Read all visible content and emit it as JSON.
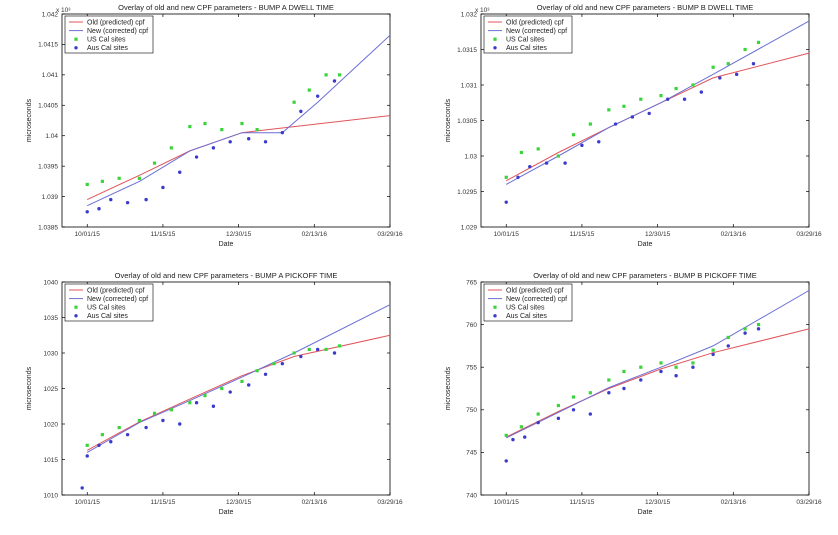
{
  "colors": {
    "old": "#e0555a",
    "new": "#6b6fd6",
    "us": "#3ad43a",
    "aus": "#3a3acc",
    "axis": "#000000"
  },
  "chart_data": [
    {
      "type": "line",
      "title": "Overlay of old and new CPF parameters - BUMP A DWELL TIME",
      "xlabel": "Date",
      "ylabel": "microseconds",
      "y_exponent": "x 10³",
      "x_ticks": [
        "10/01/15",
        "11/15/15",
        "12/30/15",
        "02/13/16",
        "03/29/16"
      ],
      "xlim": [
        "2015-09-16",
        "2016-03-29"
      ],
      "y_ticks": [
        "1.0385",
        "1.039",
        "1.0395",
        "1.04",
        "1.0405",
        "1.041",
        "1.0415",
        "1.042"
      ],
      "ylim": [
        1.0385,
        1.042
      ],
      "legend": [
        "Old (predicted) cpf",
        "New (corrected) cpf",
        "US Cal sites",
        "Aus Cal sites"
      ],
      "series": [
        {
          "name": "Old (predicted) cpf",
          "x": [
            "2015-10-01",
            "2015-11-01",
            "2015-12-01",
            "2016-01-01",
            "2016-02-01",
            "2016-03-29"
          ],
          "y": [
            1.03895,
            1.03935,
            1.03975,
            1.04005,
            1.04015,
            1.04033
          ]
        },
        {
          "name": "New (corrected) cpf",
          "x": [
            "2015-10-01",
            "2015-11-01",
            "2015-12-01",
            "2016-01-01",
            "2016-01-25",
            "2016-02-15",
            "2016-03-29"
          ],
          "y": [
            1.03885,
            1.03925,
            1.03975,
            1.04005,
            1.04005,
            1.04055,
            1.04165
          ]
        },
        {
          "name": "US Cal sites",
          "x": [
            "2015-10-01",
            "2015-10-10",
            "2015-10-20",
            "2015-11-01",
            "2015-11-10",
            "2015-11-20",
            "2015-12-01",
            "2015-12-10",
            "2015-12-20",
            "2016-01-01",
            "2016-01-10",
            "2016-02-01",
            "2016-02-10",
            "2016-02-20",
            "2016-02-28"
          ],
          "y": [
            1.0392,
            1.03925,
            1.0393,
            1.0393,
            1.03955,
            1.0398,
            1.04015,
            1.0402,
            1.0401,
            1.0402,
            1.0401,
            1.04055,
            1.04075,
            1.041,
            1.041
          ]
        },
        {
          "name": "Aus Cal sites",
          "x": [
            "2015-10-01",
            "2015-10-08",
            "2015-10-15",
            "2015-10-25",
            "2015-11-05",
            "2015-11-15",
            "2015-11-25",
            "2015-12-05",
            "2015-12-15",
            "2015-12-25",
            "2016-01-05",
            "2016-01-15",
            "2016-01-25",
            "2016-02-05",
            "2016-02-15",
            "2016-02-25"
          ],
          "y": [
            1.03875,
            1.0388,
            1.03895,
            1.0389,
            1.03895,
            1.03915,
            1.0394,
            1.03965,
            1.0398,
            1.0399,
            1.03995,
            1.0399,
            1.04005,
            1.0404,
            1.04065,
            1.0409
          ]
        }
      ]
    },
    {
      "type": "line",
      "title": "Overlay of old and new CPF parameters - BUMP B DWELL TIME",
      "xlabel": "Date",
      "ylabel": "microseconds",
      "y_exponent": "x 10³",
      "x_ticks": [
        "10/01/15",
        "11/15/15",
        "12/30/15",
        "02/13/16",
        "03/29/16"
      ],
      "xlim": [
        "2015-09-16",
        "2016-03-29"
      ],
      "y_ticks": [
        "1.029",
        "1.0295",
        "1.03",
        "1.0305",
        "1.031",
        "1.0315",
        "1.032"
      ],
      "ylim": [
        1.029,
        1.032
      ],
      "legend": [
        "Old (predicted) cpf",
        "New (corrected) cpf",
        "US Cal sites",
        "Aus Cal sites"
      ],
      "series": [
        {
          "name": "Old (predicted) cpf",
          "x": [
            "2015-10-01",
            "2015-11-01",
            "2015-12-01",
            "2016-01-01",
            "2016-02-01",
            "2016-03-29"
          ],
          "y": [
            1.02965,
            1.03005,
            1.0304,
            1.03075,
            1.0311,
            1.03145
          ]
        },
        {
          "name": "New (corrected) cpf",
          "x": [
            "2015-10-01",
            "2015-11-01",
            "2015-12-01",
            "2016-01-01",
            "2016-02-01",
            "2016-03-29"
          ],
          "y": [
            1.0296,
            1.03,
            1.0304,
            1.03075,
            1.03115,
            1.0319
          ]
        },
        {
          "name": "US Cal sites",
          "x": [
            "2015-10-01",
            "2015-10-10",
            "2015-10-20",
            "2015-11-01",
            "2015-11-10",
            "2015-11-20",
            "2015-12-01",
            "2015-12-10",
            "2015-12-20",
            "2016-01-01",
            "2016-01-10",
            "2016-01-20",
            "2016-02-01",
            "2016-02-10",
            "2016-02-20",
            "2016-02-28"
          ],
          "y": [
            1.0297,
            1.03005,
            1.0301,
            1.03,
            1.0303,
            1.03045,
            1.03065,
            1.0307,
            1.0308,
            1.03085,
            1.03095,
            1.031,
            1.03125,
            1.0313,
            1.0315,
            1.0316
          ]
        },
        {
          "name": "Aus Cal sites",
          "x": [
            "2015-10-01",
            "2015-10-08",
            "2015-10-15",
            "2015-10-25",
            "2015-11-05",
            "2015-11-15",
            "2015-11-25",
            "2015-12-05",
            "2015-12-15",
            "2015-12-25",
            "2016-01-05",
            "2016-01-15",
            "2016-01-25",
            "2016-02-05",
            "2016-02-15",
            "2016-02-25"
          ],
          "y": [
            1.02935,
            1.0297,
            1.02985,
            1.0299,
            1.0299,
            1.03015,
            1.0302,
            1.03045,
            1.03055,
            1.0306,
            1.0308,
            1.0308,
            1.0309,
            1.0311,
            1.03115,
            1.0313
          ]
        }
      ]
    },
    {
      "type": "line",
      "title": "Overlay of old and new CPF parameters - BUMP A PICKOFF TIME",
      "xlabel": "Date",
      "ylabel": "microseconds",
      "x_ticks": [
        "10/01/15",
        "11/15/15",
        "12/30/15",
        "02/13/16",
        "03/29/16"
      ],
      "xlim": [
        "2015-09-16",
        "2016-03-29"
      ],
      "y_ticks": [
        "1010",
        "1015",
        "1020",
        "1025",
        "1030",
        "1035",
        "1040"
      ],
      "ylim": [
        1010,
        1040
      ],
      "legend": [
        "Old (predicted) cpf",
        "New (corrected) cpf",
        "US Cal sites",
        "Aus Cal sites"
      ],
      "series": [
        {
          "name": "Old (predicted) cpf",
          "x": [
            "2015-10-01",
            "2015-11-01",
            "2015-12-01",
            "2016-01-01",
            "2016-02-01",
            "2016-03-29"
          ],
          "y": [
            1016.3,
            1020.3,
            1023.5,
            1026.8,
            1029.5,
            1032.5
          ]
        },
        {
          "name": "New (corrected) cpf",
          "x": [
            "2015-10-01",
            "2015-11-01",
            "2015-12-01",
            "2016-01-01",
            "2016-02-01",
            "2016-03-29"
          ],
          "y": [
            1016.0,
            1020.2,
            1023.3,
            1026.6,
            1030.0,
            1036.8
          ]
        },
        {
          "name": "US Cal sites",
          "x": [
            "2015-10-01",
            "2015-10-10",
            "2015-10-20",
            "2015-11-01",
            "2015-11-10",
            "2015-11-20",
            "2015-12-01",
            "2015-12-10",
            "2015-12-20",
            "2016-01-01",
            "2016-01-10",
            "2016-01-20",
            "2016-02-01",
            "2016-02-10",
            "2016-02-20",
            "2016-02-28"
          ],
          "y": [
            1017.0,
            1018.5,
            1019.5,
            1020.5,
            1021.5,
            1022.0,
            1023.0,
            1024.0,
            1025.0,
            1026.0,
            1027.5,
            1028.5,
            1030.0,
            1030.5,
            1030.5,
            1031.0
          ]
        },
        {
          "name": "Aus Cal sites",
          "x": [
            "2015-09-28",
            "2015-10-01",
            "2015-10-08",
            "2015-10-15",
            "2015-10-25",
            "2015-11-05",
            "2015-11-15",
            "2015-11-25",
            "2015-12-05",
            "2015-12-15",
            "2015-12-25",
            "2016-01-05",
            "2016-01-15",
            "2016-01-25",
            "2016-02-05",
            "2016-02-15",
            "2016-02-25"
          ],
          "y": [
            1011.0,
            1015.5,
            1017.0,
            1017.5,
            1018.5,
            1019.5,
            1020.5,
            1020.0,
            1023.0,
            1022.5,
            1024.5,
            1025.5,
            1027.0,
            1028.5,
            1029.5,
            1030.5,
            1030.0
          ]
        }
      ]
    },
    {
      "type": "line",
      "title": "Overlay of old and new CPF parameters - BUMP B PICKOFF TIME",
      "xlabel": "Date",
      "ylabel": "microseconds",
      "x_ticks": [
        "10/01/15",
        "11/15/15",
        "12/30/15",
        "02/13/16",
        "03/29/16"
      ],
      "xlim": [
        "2015-09-16",
        "2016-03-29"
      ],
      "y_ticks": [
        "740",
        "745",
        "750",
        "755",
        "760",
        "765"
      ],
      "ylim": [
        740,
        765
      ],
      "legend": [
        "Old (predicted) cpf",
        "New (corrected) cpf",
        "US Cal sites",
        "Aus Cal sites"
      ],
      "series": [
        {
          "name": "Old (predicted) cpf",
          "x": [
            "2015-10-01",
            "2015-11-01",
            "2015-12-01",
            "2016-01-01",
            "2016-02-01",
            "2016-03-29"
          ],
          "y": [
            746.8,
            749.8,
            752.5,
            754.8,
            756.7,
            759.5
          ]
        },
        {
          "name": "New (corrected) cpf",
          "x": [
            "2015-10-01",
            "2015-11-01",
            "2015-12-01",
            "2016-01-01",
            "2016-02-01",
            "2016-03-29"
          ],
          "y": [
            746.7,
            749.7,
            752.6,
            755.0,
            757.5,
            764.0
          ]
        },
        {
          "name": "US Cal sites",
          "x": [
            "2015-10-01",
            "2015-10-10",
            "2015-10-20",
            "2015-11-01",
            "2015-11-10",
            "2015-11-20",
            "2015-12-01",
            "2015-12-10",
            "2015-12-20",
            "2016-01-01",
            "2016-01-10",
            "2016-01-20",
            "2016-02-01",
            "2016-02-10",
            "2016-02-20",
            "2016-02-28"
          ],
          "y": [
            747.0,
            748.0,
            749.5,
            750.5,
            751.5,
            752.0,
            753.5,
            754.5,
            755.0,
            755.5,
            755.0,
            755.5,
            757.0,
            758.5,
            759.5,
            760.0
          ]
        },
        {
          "name": "Aus Cal sites",
          "x": [
            "2015-10-01",
            "2015-10-05",
            "2015-10-12",
            "2015-10-20",
            "2015-11-01",
            "2015-11-10",
            "2015-11-20",
            "2015-12-01",
            "2015-12-10",
            "2015-12-20",
            "2016-01-01",
            "2016-01-10",
            "2016-01-20",
            "2016-02-01",
            "2016-02-10",
            "2016-02-20",
            "2016-02-28"
          ],
          "y": [
            744.0,
            746.5,
            746.8,
            748.5,
            749.0,
            750.0,
            749.5,
            752.0,
            752.5,
            753.5,
            754.5,
            754.0,
            755.0,
            756.5,
            757.5,
            759.0,
            759.5
          ]
        }
      ]
    }
  ]
}
